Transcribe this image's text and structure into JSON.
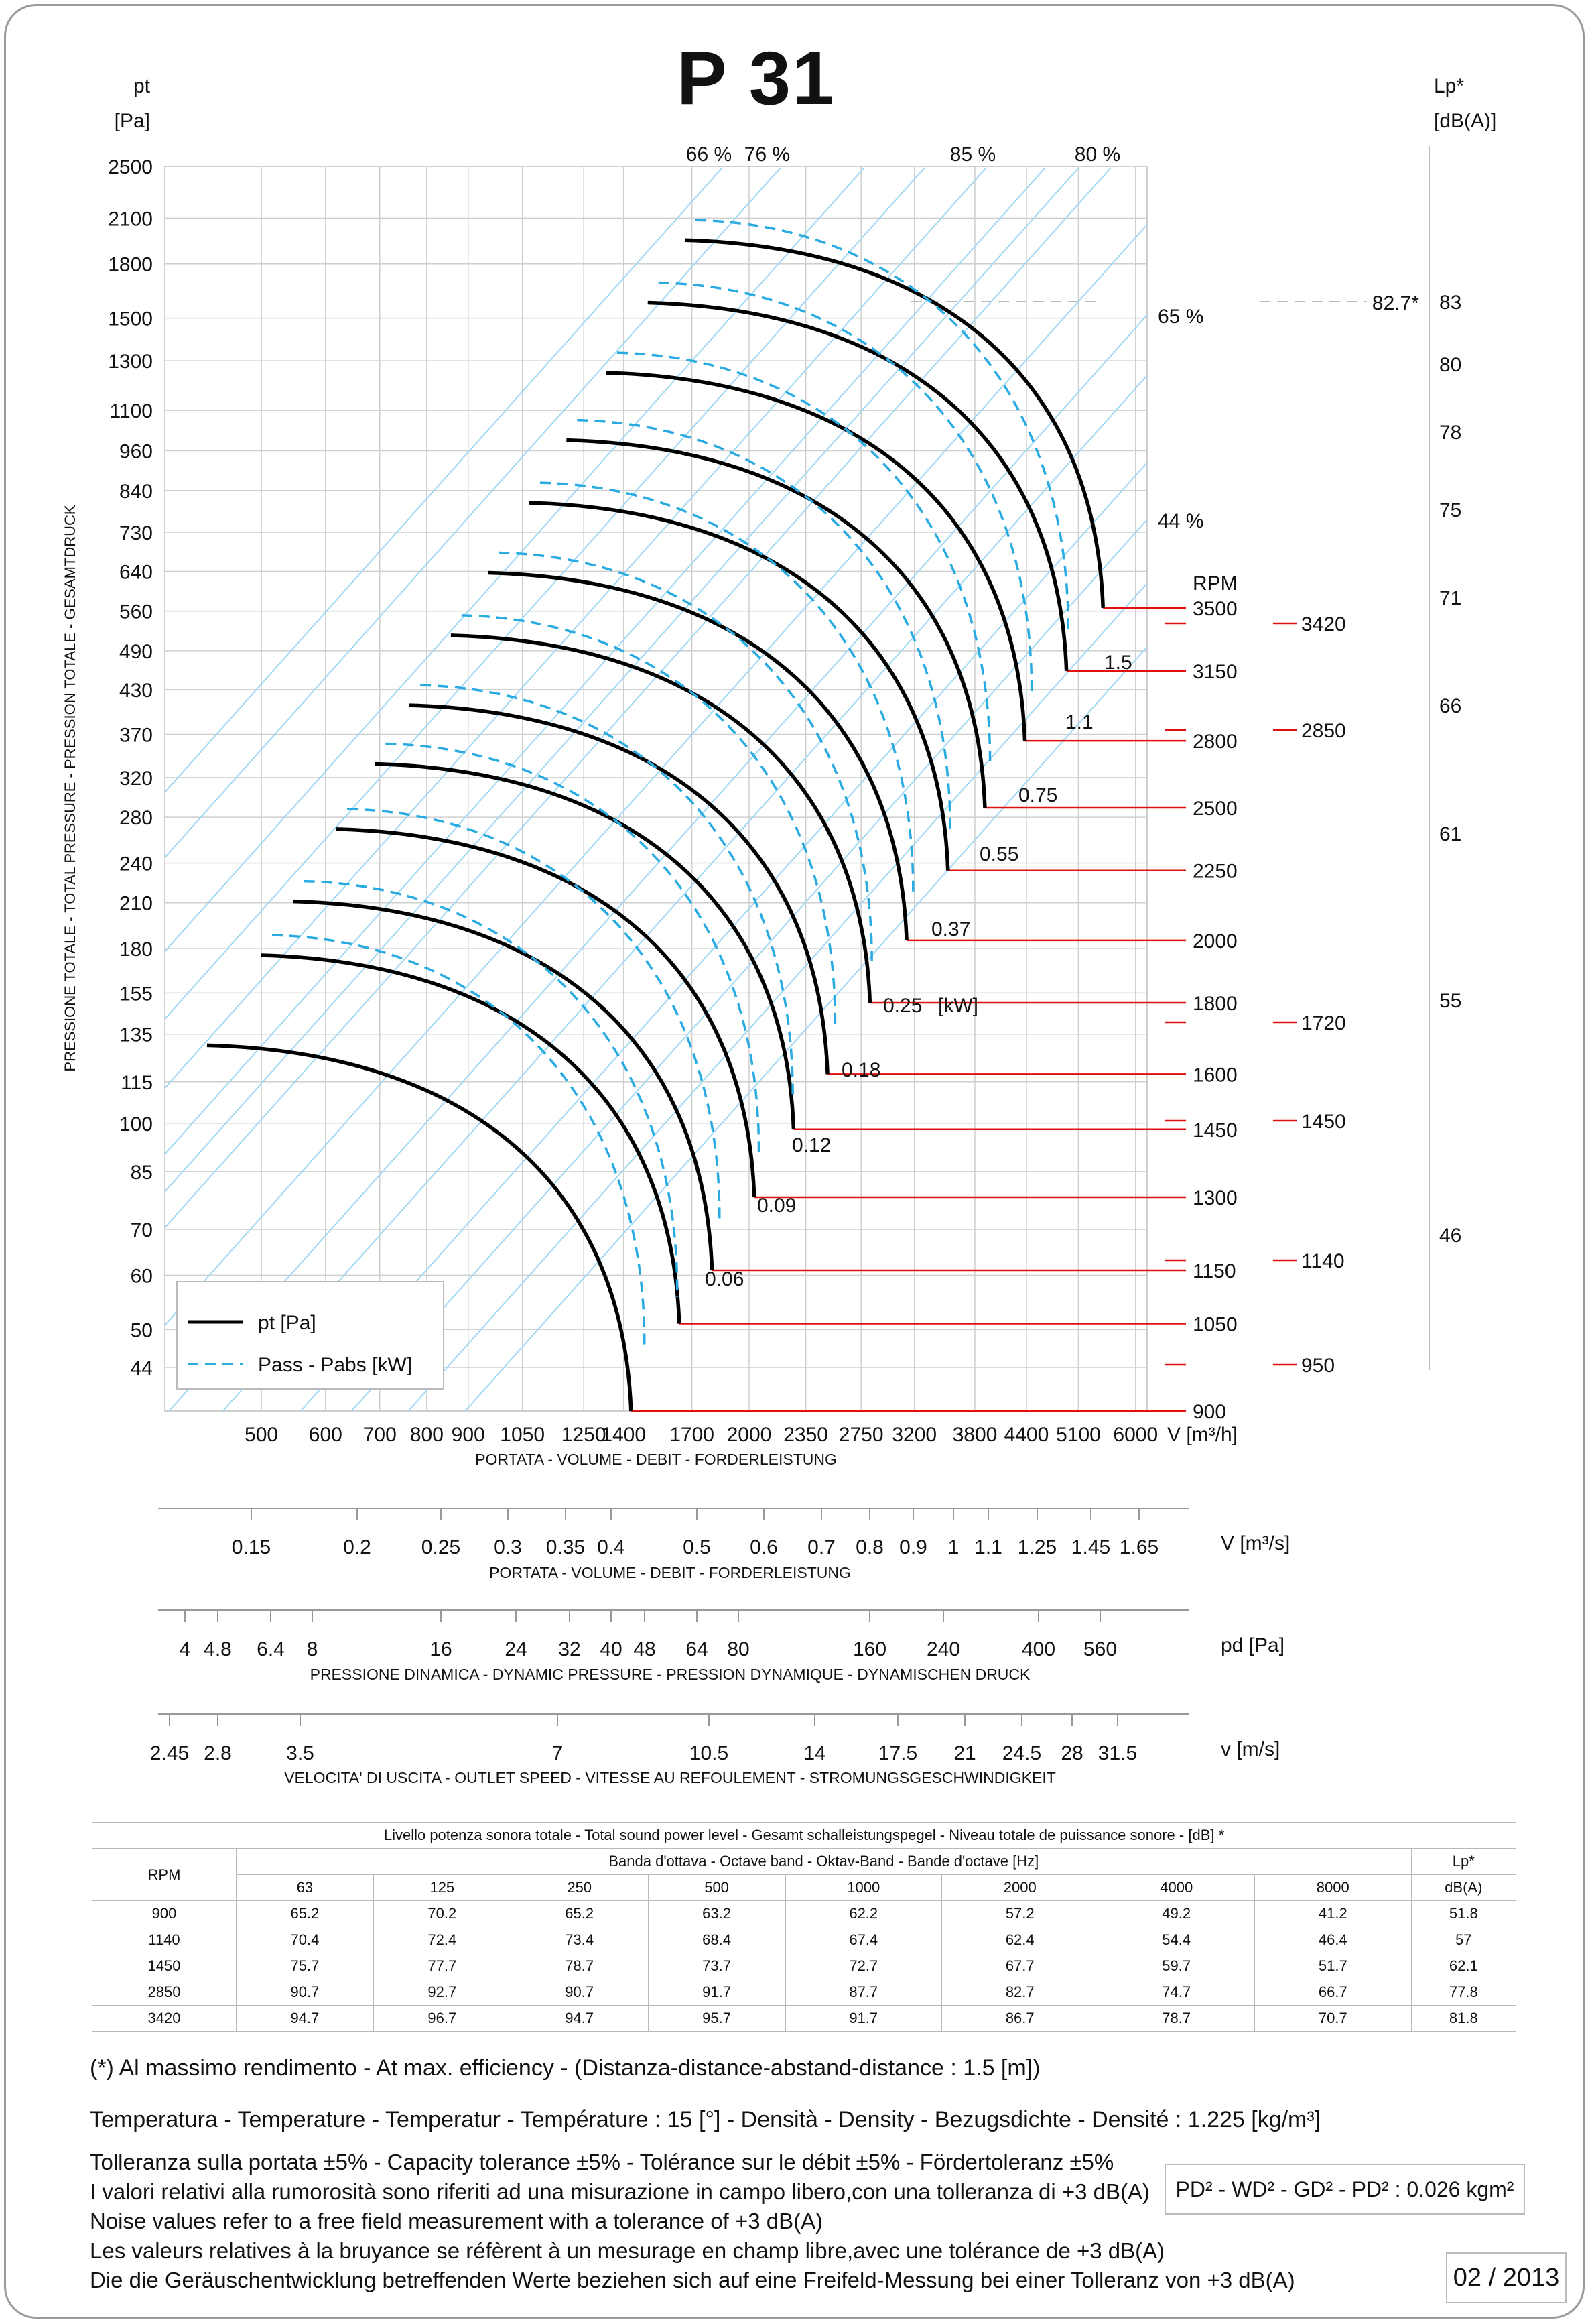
{
  "title": "P 31",
  "chart_data": {
    "type": "line",
    "title": "P 31",
    "y_axis": {
      "unit": "pt",
      "unit_line2": "[Pa]",
      "label": "PRESSIONE TOTALE - TOTAL PRESSURE - PRESSION TOTALE - GESAMTDRUCK",
      "scale": "log",
      "range": [
        38,
        2500
      ],
      "ticks": [
        2500,
        2100,
        1800,
        1500,
        1300,
        1100,
        960,
        840,
        730,
        640,
        560,
        490,
        430,
        370,
        320,
        280,
        240,
        210,
        180,
        155,
        135,
        115,
        100,
        85,
        70,
        60,
        50,
        44
      ]
    },
    "x_axis": {
      "unit": "V [m³/h]",
      "label": "PORTATA - VOLUME - DEBIT - FORDERLEISTUNG",
      "scale": "log",
      "range": [
        380,
        6200
      ],
      "ticks": [
        500,
        600,
        700,
        800,
        900,
        1050,
        1250,
        1400,
        1700,
        2000,
        2350,
        2750,
        3200,
        3800,
        4400,
        5100,
        6000
      ]
    },
    "lp_axis": {
      "unit": "Lp*",
      "unit_line2": "[dB(A)]",
      "ticks": [
        83,
        80,
        78,
        75,
        71,
        66,
        61,
        55,
        46
      ],
      "max_marker": "82.7*"
    },
    "rpm_label": "RPM",
    "rpm_values": [
      3500,
      3150,
      2800,
      2500,
      2250,
      2000,
      1800,
      1600,
      1450,
      1300,
      1150,
      1050,
      900
    ],
    "rpm_extra": [
      3420,
      2850,
      1720,
      1450,
      1140,
      950
    ],
    "power_labels_kw": [
      "1.5",
      "1.1",
      "0.75",
      "0.55",
      "0.37",
      "0.25",
      "0.18",
      "0.12",
      "0.09",
      "0.06"
    ],
    "power_unit": "[kW]",
    "efficiency_lines": [
      {
        "label": "66 %",
        "at": "top"
      },
      {
        "label": "76 %",
        "at": "top"
      },
      {
        "label": "85 %",
        "at": "top"
      },
      {
        "label": "80 %",
        "at": "top"
      },
      {
        "label": "65 %",
        "at": "right"
      },
      {
        "label": "44 %",
        "at": "right"
      }
    ],
    "series": [
      {
        "name": "pt [Pa]",
        "style": "solid",
        "color": "#000000"
      },
      {
        "name": "Pass - Pabs [kW]",
        "style": "dashed",
        "color": "#29abe2"
      }
    ],
    "curves": [
      {
        "rpm": 900,
        "shutoff_pt": 130,
        "end_v": 1430,
        "end_pt": 38
      },
      {
        "rpm": 1050,
        "shutoff_pt": 176,
        "end_v": 1640,
        "end_pt": 51
      },
      {
        "rpm": 1150,
        "shutoff_pt": 211,
        "end_v": 1800,
        "end_pt": 61
      },
      {
        "rpm": 1300,
        "shutoff_pt": 269,
        "end_v": 2030,
        "end_pt": 78
      },
      {
        "rpm": 1450,
        "shutoff_pt": 335,
        "end_v": 2270,
        "end_pt": 98
      },
      {
        "rpm": 1600,
        "shutoff_pt": 408,
        "end_v": 2500,
        "end_pt": 118
      },
      {
        "rpm": 1800,
        "shutoff_pt": 516,
        "end_v": 2820,
        "end_pt": 150
      },
      {
        "rpm": 2000,
        "shutoff_pt": 637,
        "end_v": 3130,
        "end_pt": 185
      },
      {
        "rpm": 2250,
        "shutoff_pt": 806,
        "end_v": 3520,
        "end_pt": 234
      },
      {
        "rpm": 2500,
        "shutoff_pt": 995,
        "end_v": 3910,
        "end_pt": 289
      },
      {
        "rpm": 2800,
        "shutoff_pt": 1248,
        "end_v": 4380,
        "end_pt": 362
      },
      {
        "rpm": 3150,
        "shutoff_pt": 1580,
        "end_v": 4930,
        "end_pt": 458
      },
      {
        "rpm": 3500,
        "shutoff_pt": 1950,
        "end_v": 5470,
        "end_pt": 566
      }
    ],
    "legend_position": "bottom-left"
  },
  "scales": [
    {
      "unit": "V  [m³/s]",
      "label": "PORTATA - VOLUME - DEBIT - FORDERLEISTUNG",
      "ticks": [
        "0.15",
        "0.2",
        "0.25",
        "0.3",
        "0.35",
        "0.4",
        "0.5",
        "0.6",
        "0.7",
        "0.8",
        "0.9",
        "1",
        "1.1",
        "1.25",
        "1.45",
        "1.65"
      ]
    },
    {
      "unit": "pd  [Pa]",
      "label": "PRESSIONE DINAMICA - DYNAMIC PRESSURE - PRESSION DYNAMIQUE - DYNAMISCHEN DRUCK",
      "ticks": [
        "4",
        "4.8",
        "6.4",
        "8",
        "16",
        "24",
        "32",
        "40",
        "48",
        "64",
        "80",
        "160",
        "240",
        "400",
        "560"
      ]
    },
    {
      "unit": "v  [m/s]",
      "label": "VELOCITA' DI USCITA - OUTLET SPEED - VITESSE AU REFOULEMENT - STROMUNGSGESCHWINDIGKEIT",
      "ticks": [
        "2.45",
        "2.8",
        "3.5",
        "7",
        "10.5",
        "14",
        "17.5",
        "21",
        "24.5",
        "28",
        "31.5"
      ]
    }
  ],
  "sound_table": {
    "title": "Livello potenza sonora totale - Total sound power level - Gesamt schalleistungspegel - Niveau totale de puissance sonore - [dB]   *",
    "band_title": "Banda d'ottava - Octave band - Oktav-Band - Bande d'octave [Hz]",
    "rpm_header": "RPM",
    "lp_header": "Lp*",
    "lp_unit": "dB(A)",
    "bands": [
      "63",
      "125",
      "250",
      "500",
      "1000",
      "2000",
      "4000",
      "8000"
    ],
    "rows": [
      {
        "rpm": "900",
        "values": [
          "65.2",
          "70.2",
          "65.2",
          "63.2",
          "62.2",
          "57.2",
          "49.2",
          "41.2"
        ],
        "lp": "51.8"
      },
      {
        "rpm": "1140",
        "values": [
          "70.4",
          "72.4",
          "73.4",
          "68.4",
          "67.4",
          "62.4",
          "54.4",
          "46.4"
        ],
        "lp": "57"
      },
      {
        "rpm": "1450",
        "values": [
          "75.7",
          "77.7",
          "78.7",
          "73.7",
          "72.7",
          "67.7",
          "59.7",
          "51.7"
        ],
        "lp": "62.1"
      },
      {
        "rpm": "2850",
        "values": [
          "90.7",
          "92.7",
          "90.7",
          "91.7",
          "87.7",
          "82.7",
          "74.7",
          "66.7"
        ],
        "lp": "77.8"
      },
      {
        "rpm": "3420",
        "values": [
          "94.7",
          "96.7",
          "94.7",
          "95.7",
          "91.7",
          "86.7",
          "78.7",
          "70.7"
        ],
        "lp": "81.8"
      }
    ]
  },
  "notes": {
    "efficiency": "(*) Al massimo rendimento - At max. efficiency - (Distanza-distance-abstand-distance : 1.5 [m])",
    "temperature": "Temperatura - Temperature - Temperatur - Température : 15 [°]  -  Densità - Density - Bezugsdichte - Densité : 1.225 [kg/m³]",
    "tolerance": "Tolleranza sulla portata  ±5% - Capacity tolerance ±5% - Tolérance sur le débit ±5% - Fördertoleranz ±5%",
    "noise_it": "I valori relativi alla rumorosità sono riferiti ad una misurazione in campo libero,con una tolleranza di +3 dB(A)",
    "noise_en": "Noise values refer to a free field measurement with a tolerance of +3 dB(A)",
    "noise_fr": "Les valeurs relatives à la bruyance se réfèrent à un mesurage en champ libre,avec une tolérance de +3 dB(A)",
    "noise_de": "Die die Geräuschentwicklung betreffenden Werte beziehen sich auf eine Freifeld-Messung bei einer Tolleranz von +3 dB(A)"
  },
  "inertia": "PD² -  WD² - GD² -  PD²  :  0.026 kgm²",
  "date_code": "02 / 2013",
  "colors": {
    "curve": "#000000",
    "power_curve": "#29abe2",
    "efficiency_line": "#9fd8f3",
    "grid": "#cfcfcf",
    "rpm_line": "#e01010"
  }
}
